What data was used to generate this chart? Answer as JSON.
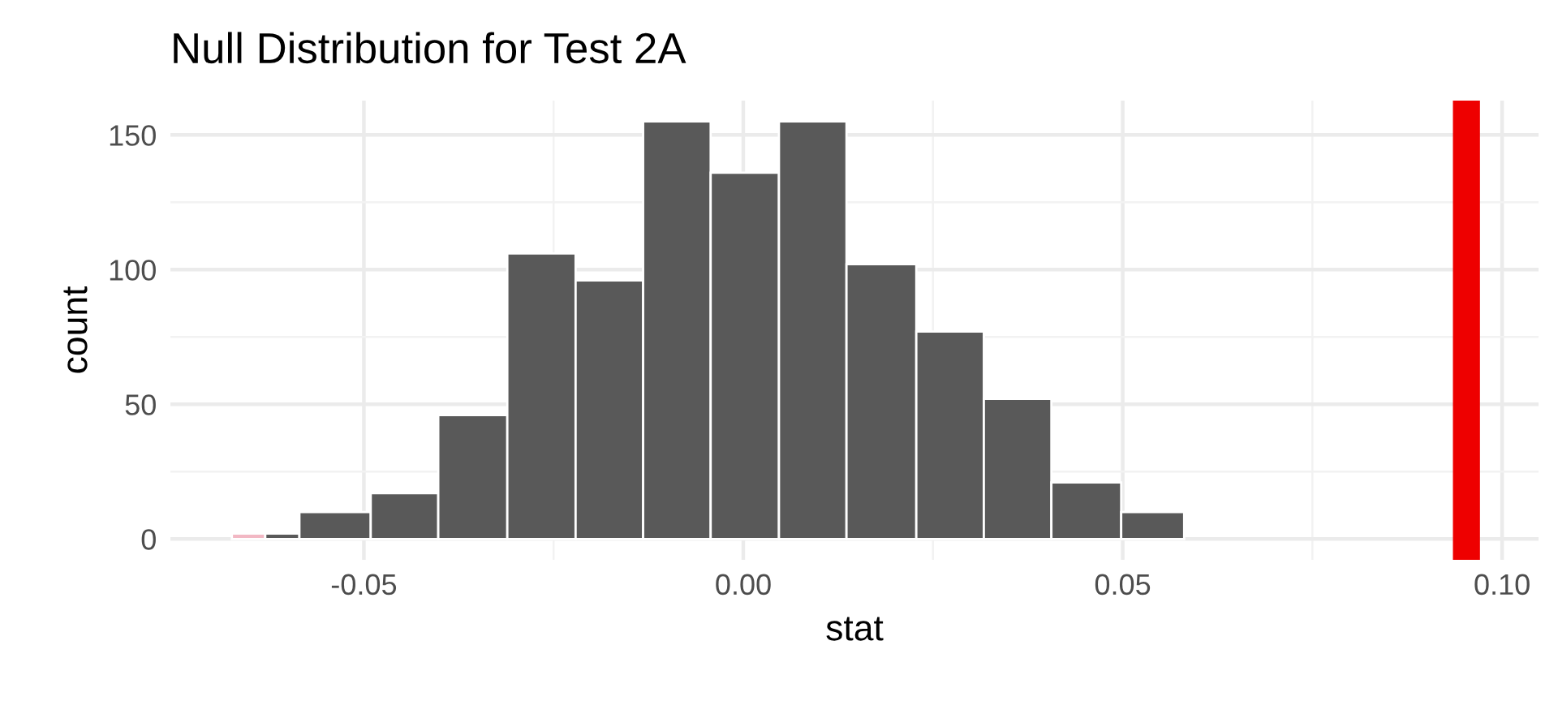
{
  "chart_data": {
    "type": "histogram",
    "title": "Null Distribution for Test 2A",
    "xlabel": "stat",
    "ylabel": "count",
    "bins": [
      -0.0674,
      -0.063,
      -0.0585,
      -0.0491,
      -0.0402,
      -0.0311,
      -0.0221,
      -0.0132,
      -0.0043,
      0.0047,
      0.0136,
      0.0228,
      0.0317,
      0.0406,
      0.0498,
      0.0581
    ],
    "values": [
      2,
      2,
      10,
      17,
      46,
      106,
      96,
      155,
      136,
      155,
      102,
      77,
      52,
      21,
      10
    ],
    "colors": [
      "#f2b8c4",
      "#595959",
      "#595959",
      "#595959",
      "#595959",
      "#595959",
      "#595959",
      "#595959",
      "#595959",
      "#595959",
      "#595959",
      "#595959",
      "#595959",
      "#595959",
      "#595959"
    ],
    "ref_lines": [
      {
        "axis": "x",
        "value": 0.0953,
        "label": null,
        "color": "#ee0000"
      }
    ],
    "xlim": [
      -0.0755,
      0.1048
    ],
    "ylim": [
      -7.75,
      162.75
    ],
    "xticks": [
      {
        "value": -0.05,
        "label": "-0.05"
      },
      {
        "value": 0,
        "label": "0.00"
      },
      {
        "value": 0.05,
        "label": "0.05"
      },
      {
        "value": 0.1,
        "label": "0.10"
      }
    ],
    "yticks": [
      0,
      50,
      100,
      150
    ],
    "grid": true
  }
}
